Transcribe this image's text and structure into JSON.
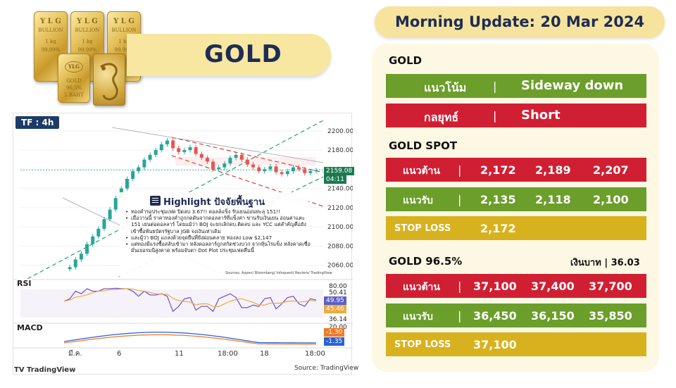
{
  "header": {
    "title": "GOLD"
  },
  "morning_update": "Morning Update: 20 Mar 2024",
  "bar_images": {
    "bar1": [
      "Y L G",
      "BULLION",
      "1 kg",
      "99.99%"
    ],
    "bar2": [
      "Y L G",
      "BULLION",
      "1 kg",
      "99.99%"
    ],
    "bar3": [
      "Y L G",
      "BULLION",
      "1 kg",
      "99.99%"
    ],
    "bar4_logo": "YLG",
    "bar4_text": [
      "GOLD",
      "96.5%",
      "5 BAHT"
    ]
  },
  "chart": {
    "timeframe": "TF : 4h",
    "rsi_label": "RSI",
    "macd_label": "MACD",
    "source": "Source: TradingView",
    "tv_brand": "TradingView",
    "price_tag": "2159.08",
    "price_tag_time": "04:11",
    "rsi_tags": [
      "50.41",
      "49.95",
      "45.46",
      "36.14"
    ],
    "rsi_scale": [
      "80.00"
    ],
    "macd_tags": [
      "-1.30",
      "-1.35"
    ],
    "macd_scale": [
      "20.00"
    ],
    "highlight": {
      "title": "Highlight ปัจจัยพื้นฐาน",
      "bullets": [
        "ทองคำรอประชุมเฟด ปิดลบ 3.67!! ดอลล์แข็ง รับเยนอ่อนทะลุ 151!!",
        "เมื่อวานนี้ ราคาทองคำถูกกดดันจากดอลลาร์ที่แข็งค่า ขานรับเงินเยน อ่อนค่าแตะ 151 เยนต่อดอลลาร์ โดยแม้ว่า BOJ จะยกเลิกดบ.ติดลบ และ YCC แต่สำคัญคือยังเข้าซื้อพันธบัตรรัฐบาล JGB จงเงินเท่าเดิม",
        "และผู้ว่า BOJ แถลงด้วยจุดยืนที่ยังผ่อนคลาย ทองลง Low $2,147",
        "แต่ทองมีแรงซื้อสลับเข้ามา หลังดอลลาร์ถูกสกัดช่วงบวก จากหุ้นโรแข็ง หลังคาดเชื่อมั่นเยอรมนีสูงคาด พร้อมจับตา Dot Plot ประชุมเฟดคืนนี้"
      ],
      "sources": "Sources: Aspen/ Bloomberg/ Infoquest/ Reuters/ TradingView"
    }
  },
  "chart_data": {
    "type": "line",
    "title": "",
    "price_axis": [
      2200,
      2180,
      2160,
      2140,
      2120,
      2100,
      2080,
      2060
    ],
    "x_ticks": [
      "มี.ค.",
      "6",
      "11",
      "18:00",
      "18",
      "18:00"
    ],
    "last_price": 2159.08,
    "ylim": [
      2048,
      2208
    ],
    "series": [
      {
        "values": [
          2056,
          2058,
          2066,
          2072,
          2082,
          2090,
          2098,
          2108,
          2118,
          2130,
          2140,
          2150,
          2158,
          2162,
          2170,
          2175,
          2180,
          2186,
          2190,
          2182,
          2178,
          2180,
          2183,
          2176,
          2172,
          2168,
          2160,
          2162,
          2166,
          2172,
          2175,
          2170,
          2165,
          2162,
          2158,
          2160,
          2163,
          2157,
          2155,
          2158,
          2162,
          2160,
          2156,
          2158,
          2159
        ]
      }
    ]
  },
  "right": {
    "gold": {
      "title": "GOLD",
      "trend_label": "แนวโน้ม",
      "trend_value": "Sideway down",
      "strategy_label": "กลยุทธ์",
      "strategy_value": "Short",
      "sep": "|"
    },
    "spot": {
      "title": "GOLD SPOT",
      "resistance_label": "แนวต้าน",
      "resistance": [
        "2,172",
        "2,189",
        "2,207"
      ],
      "support_label": "แนวรับ",
      "support": [
        "2,135",
        "2,118",
        "2,100"
      ],
      "stop_label": "STOP LOSS",
      "stop": "2,172"
    },
    "g965": {
      "title": "GOLD 96.5%",
      "currency_label": "เงินบาท",
      "currency_value": "36.03",
      "resistance_label": "แนวต้าน",
      "resistance": [
        "37,100",
        "37,400",
        "37,700"
      ],
      "support_label": "แนวรับ",
      "support": [
        "36,450",
        "36,150",
        "35,850"
      ],
      "stop_label": "STOP LOSS",
      "stop": "37,100"
    }
  },
  "colors": {
    "green": "#6b9e2a",
    "red": "#d01f33",
    "yellow": "#d8b11e",
    "navy": "#1e2c55"
  }
}
